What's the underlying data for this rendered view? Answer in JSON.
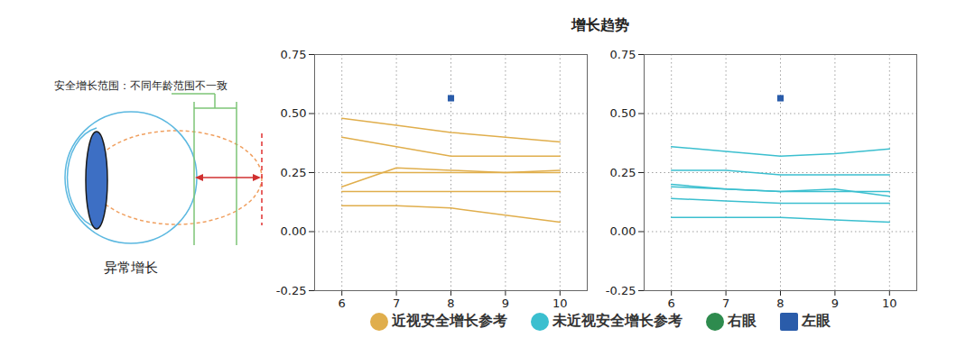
{
  "diagram": {
    "range_label": "安全增长范围：不同年龄范围不一致",
    "caption": "异常增长"
  },
  "title": "增长趋势",
  "legend": "bottom",
  "chart_data": [
    {
      "type": "line",
      "x": [
        6,
        7,
        8,
        9,
        10
      ],
      "series": [
        {
          "name": "近视安全增长参考",
          "color": "#e0ae4c",
          "values": [
            0.48,
            0.45,
            0.42,
            0.4,
            0.38
          ]
        },
        {
          "name": "近视安全增长参考",
          "color": "#e0ae4c",
          "values": [
            0.4,
            0.36,
            0.32,
            0.32,
            0.32
          ]
        },
        {
          "name": "近视安全增长参考",
          "color": "#e0ae4c",
          "values": [
            0.19,
            0.27,
            0.26,
            0.25,
            0.26
          ]
        },
        {
          "name": "近视安全增长参考",
          "color": "#e0ae4c",
          "values": [
            0.25,
            0.25,
            0.25,
            0.25,
            0.25
          ]
        },
        {
          "name": "近视安全增长参考",
          "color": "#e0ae4c",
          "values": [
            0.17,
            0.17,
            0.17,
            0.17,
            0.17
          ]
        },
        {
          "name": "近视安全增长参考",
          "color": "#e0ae4c",
          "values": [
            0.11,
            0.11,
            0.1,
            0.07,
            0.04
          ]
        },
        {
          "name": "右眼",
          "color": "#2e8b4e",
          "type": "scatter",
          "marker": "circle",
          "x": [],
          "values": []
        },
        {
          "name": "左眼",
          "color": "#2a5caa",
          "type": "scatter",
          "marker": "square",
          "x": [
            8
          ],
          "values": [
            0.565
          ]
        }
      ],
      "xlim": [
        5.5,
        10.5
      ],
      "xticks": [
        6,
        7,
        8,
        9,
        10
      ],
      "ylim": [
        -0.25,
        0.75
      ],
      "yticks": [
        -0.25,
        {
          "value": 0,
          "label": "0.00"
        },
        0.25,
        {
          "value": 0.5,
          "label": "0.50"
        },
        0.75
      ],
      "grid": true
    },
    {
      "type": "line",
      "x": [
        6,
        7,
        8,
        9,
        10
      ],
      "series": [
        {
          "name": "未近视安全增长参考",
          "color": "#3bbfcf",
          "values": [
            0.36,
            0.34,
            0.32,
            0.33,
            0.35
          ]
        },
        {
          "name": "未近视安全增长参考",
          "color": "#3bbfcf",
          "values": [
            0.26,
            0.26,
            0.24,
            0.24,
            0.24
          ]
        },
        {
          "name": "未近视安全增长参考",
          "color": "#3bbfcf",
          "values": [
            0.2,
            0.18,
            0.17,
            0.18,
            0.15
          ]
        },
        {
          "name": "未近视安全增长参考",
          "color": "#3bbfcf",
          "values": [
            0.19,
            0.18,
            0.17,
            0.17,
            0.17
          ]
        },
        {
          "name": "未近视安全增长参考",
          "color": "#3bbfcf",
          "values": [
            0.14,
            0.13,
            0.12,
            0.12,
            0.12
          ]
        },
        {
          "name": "未近视安全增长参考",
          "color": "#3bbfcf",
          "values": [
            0.06,
            0.06,
            0.06,
            0.05,
            0.04
          ]
        },
        {
          "name": "右眼",
          "color": "#2e8b4e",
          "type": "scatter",
          "marker": "circle",
          "x": [],
          "values": []
        },
        {
          "name": "左眼",
          "color": "#2a5caa",
          "type": "scatter",
          "marker": "square",
          "x": [
            8
          ],
          "values": [
            0.565
          ]
        }
      ],
      "xlim": [
        5.5,
        10.5
      ],
      "xticks": [
        6,
        7,
        8,
        9,
        10
      ],
      "ylim": [
        -0.25,
        0.75
      ],
      "yticks": [
        -0.25,
        {
          "value": 0,
          "label": "0.00"
        },
        0.25,
        {
          "value": 0.5,
          "label": "0.50"
        },
        0.75
      ],
      "grid": true
    }
  ]
}
